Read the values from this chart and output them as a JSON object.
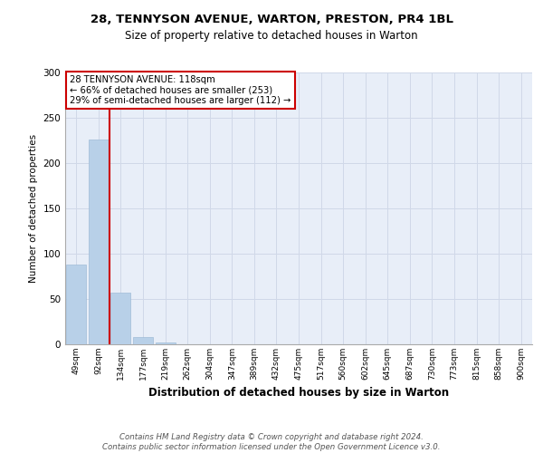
{
  "title1": "28, TENNYSON AVENUE, WARTON, PRESTON, PR4 1BL",
  "title2": "Size of property relative to detached houses in Warton",
  "xlabel": "Distribution of detached houses by size in Warton",
  "ylabel": "Number of detached properties",
  "categories": [
    "49sqm",
    "92sqm",
    "134sqm",
    "177sqm",
    "219sqm",
    "262sqm",
    "304sqm",
    "347sqm",
    "389sqm",
    "432sqm",
    "475sqm",
    "517sqm",
    "560sqm",
    "602sqm",
    "645sqm",
    "687sqm",
    "730sqm",
    "773sqm",
    "815sqm",
    "858sqm",
    "900sqm"
  ],
  "values": [
    88,
    226,
    57,
    8,
    2,
    0,
    0,
    0,
    0,
    0,
    0,
    0,
    0,
    0,
    0,
    0,
    0,
    0,
    0,
    0,
    0
  ],
  "bar_color": "#b8d0e8",
  "bar_edge_color": "#a0bcd8",
  "property_line_color": "#cc0000",
  "annotation_text": "28 TENNYSON AVENUE: 118sqm\n← 66% of detached houses are smaller (253)\n29% of semi-detached houses are larger (112) →",
  "annotation_box_color": "#ffffff",
  "annotation_box_edge_color": "#cc0000",
  "ylim": [
    0,
    300
  ],
  "yticks": [
    0,
    50,
    100,
    150,
    200,
    250,
    300
  ],
  "grid_color": "#d0d8e8",
  "bg_color": "#e8eef8",
  "footer": "Contains HM Land Registry data © Crown copyright and database right 2024.\nContains public sector information licensed under the Open Government Licence v3.0."
}
